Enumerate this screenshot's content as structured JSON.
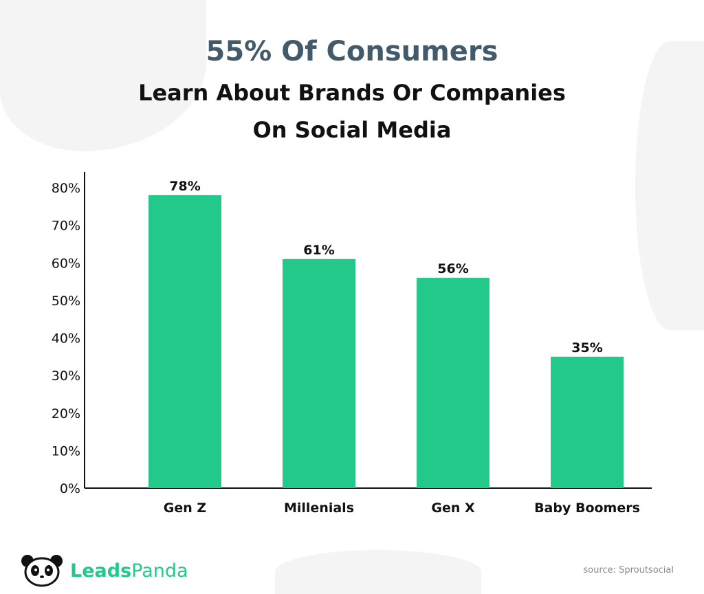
{
  "title": {
    "headline": "55% Of Consumers",
    "line2": "Learn About Brands Or Companies",
    "line3": "On Social Media"
  },
  "chart_data": {
    "type": "bar",
    "categories": [
      "Gen Z",
      "Millenials",
      "Gen X",
      "Baby Boomers"
    ],
    "values": [
      78,
      61,
      56,
      35
    ],
    "data_labels": [
      "78%",
      "61%",
      "56%",
      "35%"
    ],
    "ylim": [
      0,
      80
    ],
    "yticks": [
      "0%",
      "10%",
      "20%",
      "30%",
      "40%",
      "50%",
      "60%",
      "70%",
      "80%"
    ],
    "grid": false,
    "bar_color": "#22c98a",
    "title": "55% Of Consumers Learn About Brands Or Companies On Social Media",
    "xlabel": "",
    "ylabel": ""
  },
  "footer": {
    "brand_bold": "Leads",
    "brand_light": "Panda",
    "source": "source: Sproutsocial"
  }
}
